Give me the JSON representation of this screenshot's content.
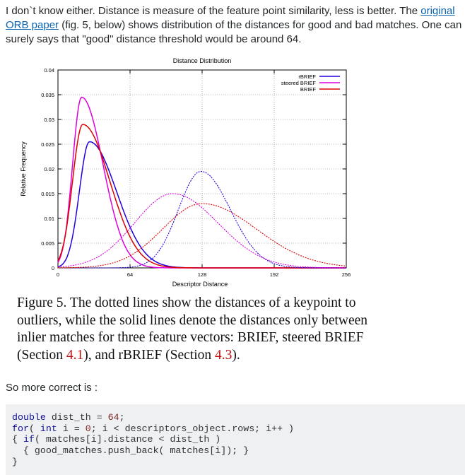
{
  "answer": {
    "intro_text_1": "I don`t know either. Distance is measure of the feature point similarity, less is better. The ",
    "link_text": "original ORB paper",
    "intro_text_2": " (fig. 5, below) shows distribution of the distances for good and bad matches. One can surely says that \"good\" distance threshold would be around 64.",
    "caption_1": "Figure 5. The dotted lines show the distances of a keypoint to outliers, while the solid lines denote the distances only between inlier matches for three feature vectors: BRIEF, steered BRIEF (Section ",
    "caption_ref_1": "4.1",
    "caption_2": "), and rBRIEF (Section ",
    "caption_ref_2": "4.3",
    "caption_3": ").",
    "so_more": "So more correct is :",
    "code": {
      "kw_double": "double",
      "l1_rest": " dist_th = ",
      "l1_num": "64",
      "l1_end": ";",
      "kw_for": "for",
      "l2_a": "( ",
      "kw_int": "int",
      "l2_b": " i = ",
      "l2_num": "0",
      "l2_c": "; i < descriptors_object.rows; i++ )",
      "l3_a": "{ ",
      "kw_if": "if",
      "l3_b": "( matches[i].distance < dist_th )",
      "l4": "  { good_matches.push_back( matches[i]); }",
      "l5": "}"
    }
  },
  "chart_data": {
    "type": "line",
    "title": "Distance Distribution",
    "xlabel": "Descriptor Distance",
    "ylabel": "Relative Frequency",
    "xlim": [
      0,
      256
    ],
    "ylim": [
      0,
      0.04
    ],
    "x_ticks": [
      "0",
      "64",
      "128",
      "192",
      "256"
    ],
    "y_ticks": [
      "0",
      "0.005",
      "0.01",
      "0.015",
      "0.02",
      "0.025",
      "0.03",
      "0.035",
      "0.04"
    ],
    "grid": true,
    "legend_position": "top-right",
    "legend": [
      "rBRIEF",
      "steered BRIEF",
      "BRIEF"
    ],
    "series": [
      {
        "name": "rBRIEF",
        "color": "#2200dd",
        "style": "solid",
        "peak_x": 28,
        "peak_y": 0.0255
      },
      {
        "name": "steered BRIEF",
        "color": "#dd00dd",
        "style": "solid",
        "peak_x": 21,
        "peak_y": 0.0345
      },
      {
        "name": "BRIEF",
        "color": "#dd0000",
        "style": "solid",
        "peak_x": 22,
        "peak_y": 0.029
      },
      {
        "name": "rBRIEF",
        "color": "#2200dd",
        "style": "dotted",
        "peak_x": 127,
        "peak_y": 0.0195
      },
      {
        "name": "steered BRIEF",
        "color": "#dd00dd",
        "style": "dotted",
        "peak_x": 102,
        "peak_y": 0.015
      },
      {
        "name": "BRIEF",
        "color": "#dd0000",
        "style": "dotted",
        "peak_x": 128,
        "peak_y": 0.013
      }
    ]
  }
}
